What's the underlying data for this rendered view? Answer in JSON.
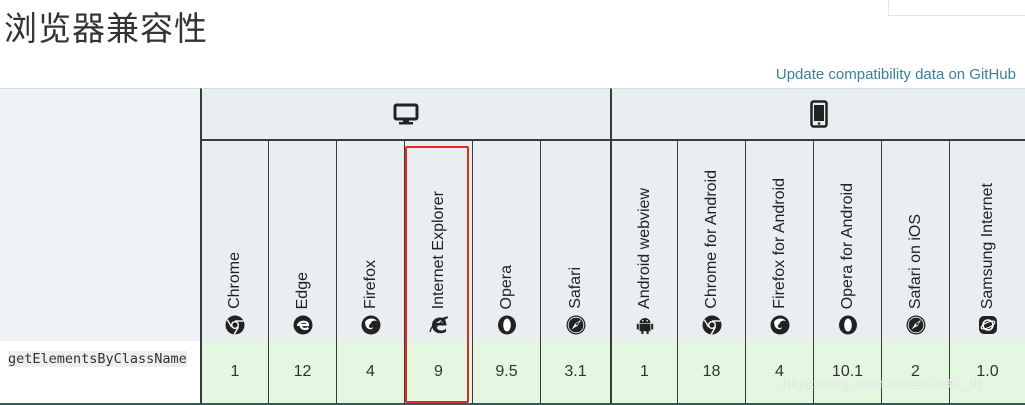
{
  "page": {
    "title": "浏览器兼容性",
    "github_link": "Update compatibility data on GitHub"
  },
  "platforms": [
    {
      "name": "desktop",
      "icon": "desktop-icon"
    },
    {
      "name": "mobile",
      "icon": "mobile-icon"
    }
  ],
  "browsers": [
    {
      "label": "Chrome",
      "icon": "chrome-icon"
    },
    {
      "label": "Edge",
      "icon": "edge-icon"
    },
    {
      "label": "Firefox",
      "icon": "firefox-icon"
    },
    {
      "label": "Internet Explorer",
      "icon": "ie-icon"
    },
    {
      "label": "Opera",
      "icon": "opera-icon"
    },
    {
      "label": "Safari",
      "icon": "safari-icon"
    },
    {
      "label": "Android webview",
      "icon": "android-icon"
    },
    {
      "label": "Chrome for Android",
      "icon": "chrome-icon"
    },
    {
      "label": "Firefox for Android",
      "icon": "firefox-icon"
    },
    {
      "label": "Opera for Android",
      "icon": "opera-icon"
    },
    {
      "label": "Safari on iOS",
      "icon": "safari-icon"
    },
    {
      "label": "Samsung Internet",
      "icon": "samsung-internet-icon"
    }
  ],
  "row": {
    "feature": "getElementsByClassName",
    "versions": [
      "1",
      "12",
      "4",
      "9",
      "9.5",
      "3.1",
      "1",
      "18",
      "4",
      "10.1",
      "2",
      "1.0"
    ]
  },
  "watermark": "https://blog.csdn.net/zxl1990_ok",
  "colors": {
    "link": "#3d7e9a",
    "support_bg": "#e4f8e1",
    "highlight": "#e02b20"
  }
}
